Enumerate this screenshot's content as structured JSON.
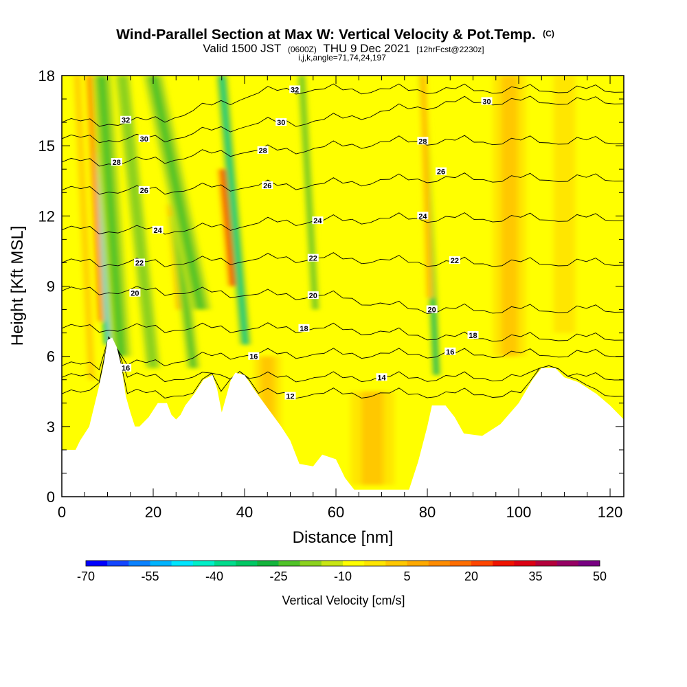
{
  "chart_data": {
    "type": "heatmap",
    "title": "Wind-Parallel Section at Max W: Vertical Velocity & Pot.Temp.",
    "title_mark": "(C)",
    "subtitle": {
      "part1": "Valid 1500 JST",
      "part2": "(0600Z)",
      "part3": "THU 9 Dec 2021",
      "part4": "[12hrFcst@2230z]"
    },
    "subtitle2": "i,j,k,angle=71,74,24,197",
    "xlabel": "Distance [nm]",
    "ylabel": "Height [Kft MSL]",
    "xlim": [
      0,
      123
    ],
    "ylim": [
      0,
      18
    ],
    "x_ticks": [
      "0",
      "20",
      "40",
      "60",
      "80",
      "100",
      "120"
    ],
    "y_ticks": [
      "0",
      "3",
      "6",
      "9",
      "12",
      "15",
      "18"
    ],
    "x_tick_values": [
      0,
      20,
      40,
      60,
      80,
      100,
      120
    ],
    "y_tick_values": [
      0,
      3,
      6,
      9,
      12,
      15,
      18
    ],
    "background_color": "#ffff00",
    "colorbar": {
      "title": "Vertical Velocity [cm/s]",
      "labels": [
        "-70",
        "-55",
        "-40",
        "-25",
        "-10",
        "5",
        "20",
        "35",
        "50"
      ],
      "colors": [
        "#0000ff",
        "#1446ff",
        "#0a82ff",
        "#00b4ff",
        "#00e6ff",
        "#00f0c8",
        "#00dc8c",
        "#00c864",
        "#14b43c",
        "#50c328",
        "#8cd21e",
        "#c8e614",
        "#ffff00",
        "#ffe600",
        "#ffc800",
        "#ffaa00",
        "#ff8c00",
        "#ff6e00",
        "#ff4600",
        "#f01400",
        "#dc0014",
        "#b4003c",
        "#960064",
        "#780082"
      ]
    },
    "terrain_profile": [
      [
        0,
        2.0
      ],
      [
        3,
        2.0
      ],
      [
        4,
        2.4
      ],
      [
        6,
        3.0
      ],
      [
        8,
        4.6
      ],
      [
        9,
        5.5
      ],
      [
        10,
        6.7
      ],
      [
        11,
        6.8
      ],
      [
        12,
        6.4
      ],
      [
        13,
        5.6
      ],
      [
        14,
        4.3
      ],
      [
        15,
        3.6
      ],
      [
        16,
        3.0
      ],
      [
        17,
        3.0
      ],
      [
        19,
        3.4
      ],
      [
        21,
        4.0
      ],
      [
        23,
        4.0
      ],
      [
        24,
        3.5
      ],
      [
        25,
        3.3
      ],
      [
        26,
        3.5
      ],
      [
        27,
        3.9
      ],
      [
        29,
        4.4
      ],
      [
        31,
        5.0
      ],
      [
        33,
        5.2
      ],
      [
        34,
        4.6
      ],
      [
        35,
        3.6
      ],
      [
        37,
        5.0
      ],
      [
        38,
        5.3
      ],
      [
        40,
        5.2
      ],
      [
        42,
        4.6
      ],
      [
        45,
        3.8
      ],
      [
        48,
        3.0
      ],
      [
        50,
        2.4
      ],
      [
        52,
        1.4
      ],
      [
        55,
        1.3
      ],
      [
        57,
        1.8
      ],
      [
        60,
        1.6
      ],
      [
        62,
        0.8
      ],
      [
        64,
        0.3
      ],
      [
        70,
        0.3
      ],
      [
        76,
        0.3
      ],
      [
        78,
        1.5
      ],
      [
        80,
        3.0
      ],
      [
        81,
        3.9
      ],
      [
        84,
        3.9
      ],
      [
        86,
        3.4
      ],
      [
        88,
        2.7
      ],
      [
        92,
        2.6
      ],
      [
        96,
        3.1
      ],
      [
        100,
        4.0
      ],
      [
        103,
        5.0
      ],
      [
        105,
        5.5
      ],
      [
        108,
        5.5
      ],
      [
        110,
        5.1
      ],
      [
        113,
        4.9
      ],
      [
        117,
        4.4
      ],
      [
        120,
        3.9
      ],
      [
        123,
        3.3
      ]
    ],
    "velocity_features": [
      {
        "x": 10.5,
        "width": 1.3,
        "y_bottom": 6.5,
        "y_top": 18,
        "slope": -0.12,
        "value": -45
      },
      {
        "x": 13.0,
        "width": 2.5,
        "y_bottom": 6.0,
        "y_top": 18,
        "slope": -0.12,
        "value": -12
      },
      {
        "x": 8.5,
        "width": 0.9,
        "y_bottom": 7.5,
        "y_top": 18,
        "slope": -0.08,
        "value": 25
      },
      {
        "x": 6.5,
        "width": 1.5,
        "y_bottom": 5.0,
        "y_top": 18,
        "slope": -0.08,
        "value": 12
      },
      {
        "x": 20.0,
        "width": 1.8,
        "y_bottom": 5.5,
        "y_top": 18,
        "slope": -0.18,
        "value": -10
      },
      {
        "x": 26.5,
        "width": 1.6,
        "y_bottom": 8.0,
        "y_top": 12.5,
        "slope": -0.15,
        "value": 35
      },
      {
        "x": 28.8,
        "width": 1.6,
        "y_bottom": 5.5,
        "y_top": 12,
        "slope": -0.2,
        "value": -14
      },
      {
        "x": 30.5,
        "width": 2.5,
        "y_bottom": 8.0,
        "y_top": 18,
        "slope": -0.35,
        "value": -12
      },
      {
        "x": 37.5,
        "width": 1.3,
        "y_bottom": 9.0,
        "y_top": 14.0,
        "slope": -0.15,
        "value": 38
      },
      {
        "x": 40.2,
        "width": 1.2,
        "y_bottom": 6.5,
        "y_top": 18,
        "slope": -0.15,
        "value": -28
      },
      {
        "x": 55.5,
        "width": 1.0,
        "y_bottom": 8.0,
        "y_top": 18,
        "slope": -0.1,
        "value": -12
      },
      {
        "x": 82.0,
        "width": 0.9,
        "y_bottom": 5.2,
        "y_top": 18,
        "slope": -0.08,
        "value": -25
      },
      {
        "x": 80.5,
        "width": 0.9,
        "y_bottom": 8.5,
        "y_top": 18,
        "slope": -0.05,
        "value": 18
      },
      {
        "x": 98.0,
        "width": 6.0,
        "y_bottom": 6.0,
        "y_top": 18,
        "slope": 0.0,
        "value": 10
      },
      {
        "x": 110.0,
        "width": 4.0,
        "y_bottom": 7.0,
        "y_top": 18,
        "slope": 0.0,
        "value": 8
      },
      {
        "x": 68.0,
        "width": 8.0,
        "y_bottom": 0.5,
        "y_top": 4.5,
        "slope": 0.0,
        "value": 10
      },
      {
        "x": 45.0,
        "width": 5.0,
        "y_bottom": 2.0,
        "y_top": 6.0,
        "slope": 0.0,
        "value": 10
      }
    ],
    "theta_contours": [
      {
        "label": "12",
        "x": 50,
        "y": 4.4,
        "label_x": 50,
        "label_y": 4.3
      },
      {
        "label": "14",
        "x": 60,
        "y": 5.1,
        "label_x": 70,
        "label_y": 5.1
      },
      {
        "label": "16",
        "x": 10,
        "y": 5.6,
        "label_x": 14,
        "label_y": 5.5
      },
      {
        "label": "16",
        "x": 42,
        "y": 6.1,
        "label_x": 42,
        "label_y": 6.0
      },
      {
        "label": "16",
        "x": 85,
        "y": 6.1,
        "label_x": 85,
        "label_y": 6.2
      },
      {
        "label": "18",
        "x": 54,
        "y": 7.2,
        "label_x": 53,
        "label_y": 7.2
      },
      {
        "label": "18",
        "x": 90,
        "y": 6.8,
        "label_x": 90,
        "label_y": 6.9
      },
      {
        "label": "20",
        "x": 16,
        "y": 8.8,
        "label_x": 16,
        "label_y": 8.7
      },
      {
        "label": "20",
        "x": 55,
        "y": 8.6,
        "label_x": 55,
        "label_y": 8.6
      },
      {
        "label": "20",
        "x": 81,
        "y": 8.0,
        "label_x": 81,
        "label_y": 8.0
      },
      {
        "label": "22",
        "x": 17,
        "y": 10.0,
        "label_x": 17,
        "label_y": 10.0
      },
      {
        "label": "22",
        "x": 55,
        "y": 10.2,
        "label_x": 55,
        "label_y": 10.2
      },
      {
        "label": "22",
        "x": 86,
        "y": 10.0,
        "label_x": 86,
        "label_y": 10.1
      },
      {
        "label": "24",
        "x": 21,
        "y": 11.4,
        "label_x": 21,
        "label_y": 11.4
      },
      {
        "label": "24",
        "x": 56,
        "y": 11.8,
        "label_x": 56,
        "label_y": 11.8
      },
      {
        "label": "24",
        "x": 79,
        "y": 11.9,
        "label_x": 79,
        "label_y": 12.0
      },
      {
        "label": "26",
        "x": 18,
        "y": 13.1,
        "label_x": 18,
        "label_y": 13.1
      },
      {
        "label": "26",
        "x": 46,
        "y": 13.3,
        "label_x": 45,
        "label_y": 13.3
      },
      {
        "label": "26",
        "x": 83,
        "y": 13.6,
        "label_x": 83,
        "label_y": 13.9
      },
      {
        "label": "28",
        "x": 12,
        "y": 14.3,
        "label_x": 12,
        "label_y": 14.3
      },
      {
        "label": "28",
        "x": 44,
        "y": 14.8,
        "label_x": 44,
        "label_y": 14.8
      },
      {
        "label": "28",
        "x": 79,
        "y": 15.2,
        "label_x": 79,
        "label_y": 15.2
      },
      {
        "label": "30",
        "x": 18,
        "y": 15.3,
        "label_x": 18,
        "label_y": 15.3
      },
      {
        "label": "30",
        "x": 48,
        "y": 16.0,
        "label_x": 48,
        "label_y": 16.0
      },
      {
        "label": "30",
        "x": 93,
        "y": 16.9,
        "label_x": 93,
        "label_y": 16.9
      },
      {
        "label": "32",
        "x": 14,
        "y": 16.0,
        "label_x": 14,
        "label_y": 16.1
      },
      {
        "label": "32",
        "x": 51,
        "y": 17.4,
        "label_x": 51,
        "label_y": 17.4
      }
    ]
  }
}
